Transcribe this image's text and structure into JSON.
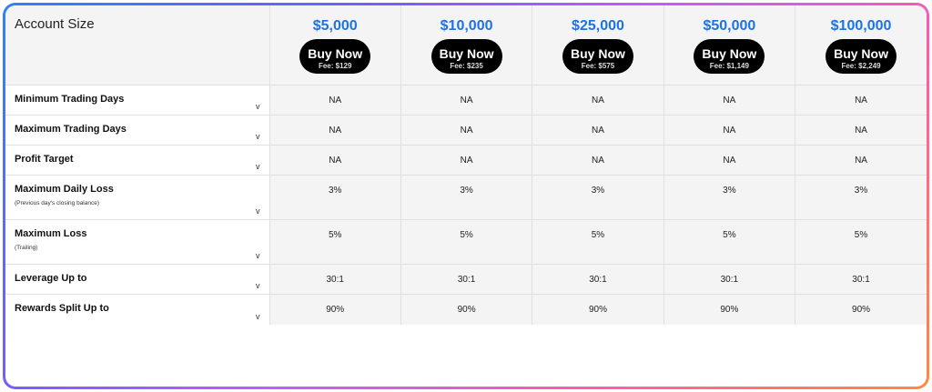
{
  "header": {
    "account_size_label": "Account Size",
    "plans": [
      {
        "size": "$5,000",
        "button": "Buy Now",
        "fee": "Fee: $129"
      },
      {
        "size": "$10,000",
        "button": "Buy Now",
        "fee": "Fee: $235"
      },
      {
        "size": "$25,000",
        "button": "Buy Now",
        "fee": "Fee: $575"
      },
      {
        "size": "$50,000",
        "button": "Buy Now",
        "fee": "Fee: $1,149"
      },
      {
        "size": "$100,000",
        "button": "Buy Now",
        "fee": "Fee: $2,249"
      }
    ]
  },
  "rows": [
    {
      "label": "Minimum Trading Days",
      "sub": "",
      "values": [
        "NA",
        "NA",
        "NA",
        "NA",
        "NA"
      ]
    },
    {
      "label": "Maximum Trading Days",
      "sub": "",
      "values": [
        "NA",
        "NA",
        "NA",
        "NA",
        "NA"
      ]
    },
    {
      "label": "Profit Target",
      "sub": "",
      "values": [
        "NA",
        "NA",
        "NA",
        "NA",
        "NA"
      ]
    },
    {
      "label": "Maximum Daily Loss",
      "sub": "(Previous day's closing balance)",
      "values": [
        "3%",
        "3%",
        "3%",
        "3%",
        "3%"
      ]
    },
    {
      "label": "Maximum Loss",
      "sub": "(Trailing)",
      "values": [
        "5%",
        "5%",
        "5%",
        "5%",
        "5%"
      ]
    },
    {
      "label": "Leverage Up to",
      "sub": "",
      "values": [
        "30:1",
        "30:1",
        "30:1",
        "30:1",
        "30:1"
      ]
    },
    {
      "label": "Rewards Split Up to",
      "sub": "",
      "values": [
        "90%",
        "90%",
        "90%",
        "90%",
        "90%"
      ]
    }
  ],
  "icons": {
    "expand": "chevron-down-icon",
    "expand_glyph": "v"
  },
  "colors": {
    "accent": "#1a73e8",
    "button_bg": "#000000",
    "cell_bg": "#f4f4f4"
  }
}
